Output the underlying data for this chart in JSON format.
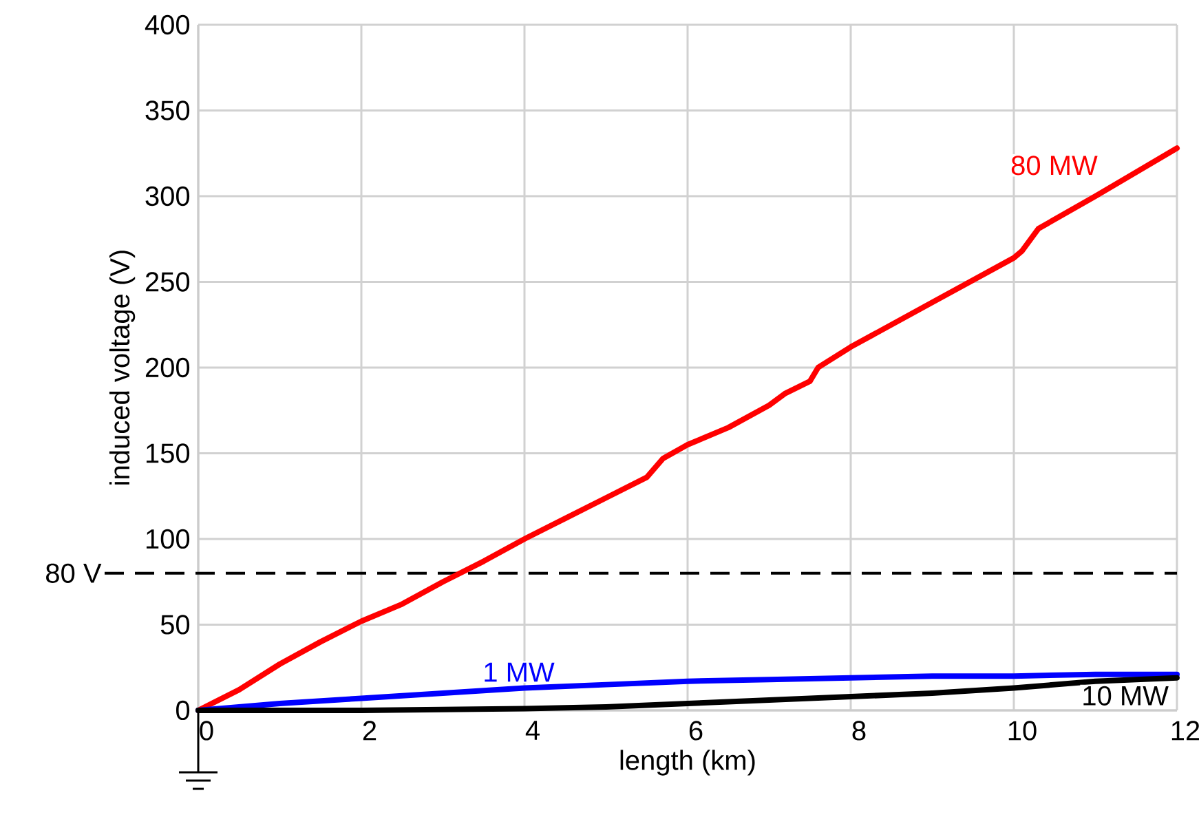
{
  "chart_data": {
    "type": "line",
    "xlabel": "length (km)",
    "ylabel": "induced voltage (V)",
    "xlim": [
      0,
      12
    ],
    "ylim": [
      0,
      400
    ],
    "xticks": [
      0,
      2,
      4,
      6,
      8,
      10,
      12
    ],
    "yticks": [
      0,
      50,
      100,
      150,
      200,
      250,
      300,
      350,
      400
    ],
    "grid": true,
    "line_style": "solid",
    "marker": "none",
    "ref_lines": [
      {
        "axis": "y",
        "value": 80,
        "label": "80 V",
        "color": "#000000",
        "line_style": "dashed"
      }
    ],
    "series": [
      {
        "name": "80 MW",
        "color": "#ff0000",
        "x": [
          0,
          0.5,
          1,
          1.5,
          2,
          2.5,
          3,
          3.5,
          4,
          4.5,
          5,
          5.5,
          5.7,
          6,
          6.5,
          7,
          7.2,
          7.5,
          7.6,
          8,
          9,
          10,
          10.1,
          10.3,
          11,
          12
        ],
        "values": [
          0,
          12,
          27,
          40,
          52,
          62,
          75,
          87,
          100,
          112,
          124,
          136,
          147,
          155,
          165,
          178,
          185,
          192,
          200,
          212,
          238,
          264,
          268,
          281,
          300,
          328
        ]
      },
      {
        "name": "1 MW",
        "color": "#0000ff",
        "x": [
          0,
          1,
          2,
          3,
          4,
          5,
          6,
          7,
          8,
          9,
          10,
          11,
          12
        ],
        "values": [
          0,
          4,
          7,
          10,
          13,
          15,
          17,
          18,
          19,
          20,
          20,
          21,
          21
        ]
      },
      {
        "name": "10 MW",
        "color": "#000000",
        "x": [
          0,
          2,
          4,
          5,
          6,
          7,
          8,
          9,
          10,
          11,
          12
        ],
        "values": [
          0,
          0,
          1,
          2,
          4,
          6,
          8,
          10,
          13,
          17,
          19
        ]
      }
    ]
  }
}
